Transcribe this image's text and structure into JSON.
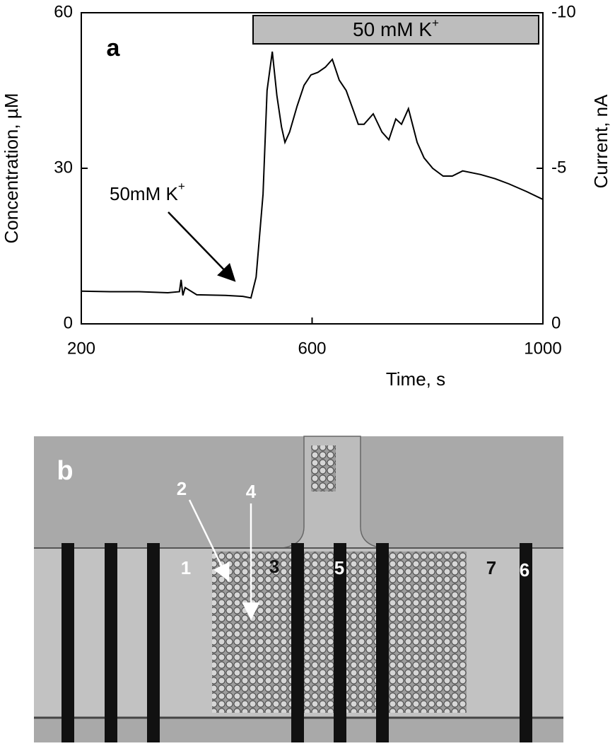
{
  "chart_data": {
    "type": "line",
    "panel_label": "a",
    "xlabel": "Time, s",
    "ylabel": "Concentration, µM",
    "y2label": "Current, nA",
    "banner": {
      "text": "50 mM K",
      "sup": "+"
    },
    "annotation": {
      "text": "50mM K",
      "sup": "+"
    },
    "xlim": [
      200,
      1000
    ],
    "xticks": [
      200,
      600,
      1000
    ],
    "ylim": [
      0,
      60
    ],
    "yticks": [
      0,
      30,
      60
    ],
    "y2lim": [
      0,
      -10
    ],
    "y2ticks": [
      0,
      -5,
      -10
    ],
    "x": [
      200,
      250,
      300,
      350,
      370,
      373,
      376,
      380,
      400,
      450,
      480,
      494,
      503,
      515,
      522,
      531,
      539,
      547,
      553,
      561,
      574,
      586,
      598,
      610,
      623,
      635,
      647,
      659,
      672,
      680,
      690,
      706,
      721,
      733,
      745,
      755,
      767,
      782,
      794,
      809,
      827,
      843,
      861,
      892,
      917,
      941,
      972,
      1000
    ],
    "series": [
      {
        "color": "#000000",
        "values": [
          6.3,
          6.2,
          6.2,
          6.0,
          6.2,
          8.5,
          5.5,
          7.0,
          5.6,
          5.5,
          5.3,
          5.0,
          9,
          25,
          45,
          52.5,
          44,
          38,
          35,
          37,
          42,
          46,
          48,
          48.5,
          49.5,
          51,
          47,
          45,
          41,
          38.5,
          38.5,
          40.5,
          37,
          35.5,
          39.5,
          38.5,
          41.5,
          35,
          32,
          30,
          28.5,
          28.5,
          29.5,
          28.8,
          28,
          27,
          25.5,
          24
        ]
      }
    ]
  },
  "micrograph": {
    "panel_label": "b",
    "labels": [
      "1",
      "2",
      "3",
      "4",
      "5",
      "6",
      "7"
    ]
  }
}
